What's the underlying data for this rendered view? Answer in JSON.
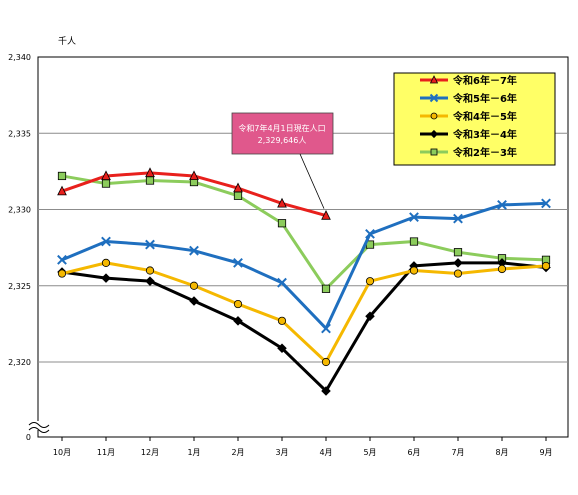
{
  "chart_data": {
    "type": "line",
    "unit_label": "千人",
    "categories": [
      "10月",
      "11月",
      "12月",
      "1月",
      "2月",
      "3月",
      "4月",
      "5月",
      "6月",
      "7月",
      "8月",
      "9月"
    ],
    "y_ticks": [
      "2,340",
      "2,335",
      "2,330",
      "2,325",
      "2,320",
      "0"
    ],
    "ylim": [
      2315,
      2340
    ],
    "axis_break": true,
    "grid": true,
    "legend_position": "top-right",
    "series": [
      {
        "name": "令和6年－7年",
        "color": "#e8201c",
        "marker": "triangle",
        "values": [
          2331.2,
          2332.2,
          2332.4,
          2332.2,
          2331.4,
          2330.4,
          2329.6,
          null,
          null,
          null,
          null,
          null
        ]
      },
      {
        "name": "令和5年－6年",
        "color": "#1f6fbf",
        "marker": "x",
        "values": [
          2326.7,
          2327.9,
          2327.7,
          2327.3,
          2326.5,
          2325.2,
          2322.2,
          2328.4,
          2329.5,
          2329.4,
          2330.3,
          2330.4
        ]
      },
      {
        "name": "令和4年－5年",
        "color": "#f5b800",
        "marker": "circle",
        "values": [
          2325.8,
          2326.5,
          2326.0,
          2325.0,
          2323.8,
          2322.7,
          2320.0,
          2325.3,
          2326.0,
          2325.8,
          2326.1,
          2326.3
        ]
      },
      {
        "name": "令和3年－4年",
        "color": "#000000",
        "marker": "diamond",
        "values": [
          2325.9,
          2325.5,
          2325.3,
          2324.0,
          2322.7,
          2320.9,
          2318.1,
          2323.0,
          2326.3,
          2326.5,
          2326.5,
          2326.2
        ]
      },
      {
        "name": "令和2年－3年",
        "color": "#8ccc5c",
        "marker": "square",
        "values": [
          2332.2,
          2331.7,
          2331.9,
          2331.8,
          2330.9,
          2329.1,
          2324.8,
          2327.7,
          2327.9,
          2327.2,
          2326.8,
          2326.7
        ]
      }
    ],
    "annotation": {
      "line1": "令和7年4月1日現在人口",
      "line2": "2,329,646人",
      "target_series": 0,
      "target_index": 6
    }
  }
}
